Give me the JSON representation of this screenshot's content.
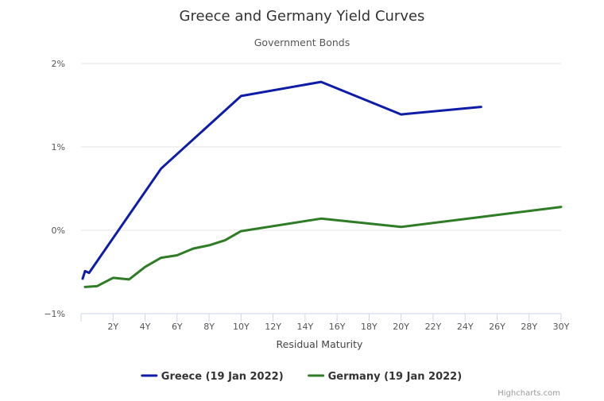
{
  "chart_data": {
    "type": "line",
    "title": "Greece and Germany Yield Curves",
    "subtitle": "Government Bonds",
    "xlabel": "Residual Maturity",
    "ylabel": "",
    "xlim": [
      0,
      30
    ],
    "ylim": [
      -1,
      2
    ],
    "x_ticks": [
      2,
      4,
      6,
      8,
      10,
      12,
      14,
      16,
      18,
      20,
      22,
      24,
      26,
      28,
      30
    ],
    "x_tick_labels": [
      "2Y",
      "4Y",
      "6Y",
      "8Y",
      "10Y",
      "12Y",
      "14Y",
      "16Y",
      "18Y",
      "20Y",
      "22Y",
      "24Y",
      "26Y",
      "28Y",
      "30Y"
    ],
    "y_ticks": [
      -1,
      0,
      1,
      2
    ],
    "y_tick_labels": [
      "−1%",
      "0%",
      "1%",
      "2%"
    ],
    "grid": true,
    "legend_position": "bottom-center",
    "series": [
      {
        "name": "Greece (19 Jan 2022)",
        "color": "#0f1ca8",
        "points": [
          [
            0.1,
            -0.58
          ],
          [
            0.25,
            -0.49
          ],
          [
            0.5,
            -0.51
          ],
          [
            5,
            0.74
          ],
          [
            10,
            1.61
          ],
          [
            15,
            1.78
          ],
          [
            20,
            1.39
          ],
          [
            25,
            1.48
          ]
        ]
      },
      {
        "name": "Germany (19 Jan 2022)",
        "color": "#2e7d25",
        "points": [
          [
            0.25,
            -0.68
          ],
          [
            1,
            -0.67
          ],
          [
            2,
            -0.57
          ],
          [
            3,
            -0.59
          ],
          [
            4,
            -0.44
          ],
          [
            5,
            -0.33
          ],
          [
            6,
            -0.3
          ],
          [
            7,
            -0.22
          ],
          [
            8,
            -0.18
          ],
          [
            9,
            -0.12
          ],
          [
            10,
            -0.01
          ],
          [
            15,
            0.14
          ],
          [
            20,
            0.04
          ],
          [
            25,
            0.16
          ],
          [
            30,
            0.28
          ]
        ]
      }
    ]
  },
  "credits": "Highcharts.com"
}
